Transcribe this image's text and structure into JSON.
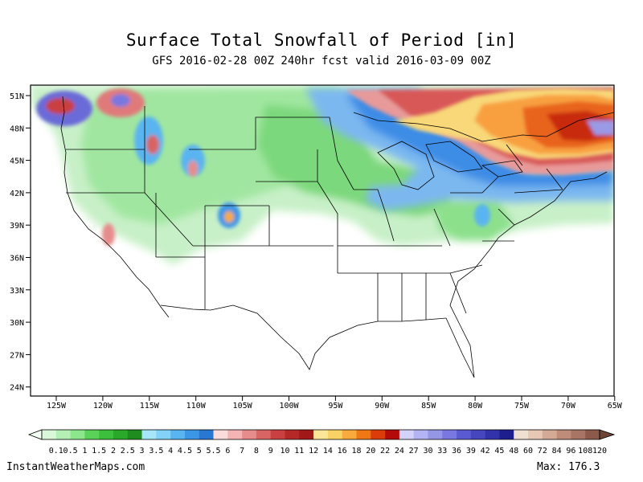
{
  "header": {
    "title": "Surface Total Snowfall of Period [in]",
    "subtitle": "GFS 2016-02-28 00Z 240hr fcst valid 2016-03-09 00Z"
  },
  "map": {
    "lat_labels": [
      "51N",
      "48N",
      "45N",
      "42N",
      "39N",
      "36N",
      "33N",
      "30N",
      "27N",
      "24N"
    ],
    "lon_labels": [
      "125W",
      "120W",
      "115W",
      "110W",
      "105W",
      "100W",
      "95W",
      "90W",
      "85W",
      "80W",
      "75W",
      "70W",
      "65W"
    ]
  },
  "legend": {
    "labels": [
      "0.1",
      "0.5",
      "1",
      "1.5",
      "2",
      "2.5",
      "3",
      "3.5",
      "4",
      "4.5",
      "5",
      "5.5",
      "6",
      "7",
      "8",
      "9",
      "10",
      "11",
      "12",
      "14",
      "16",
      "18",
      "20",
      "22",
      "24",
      "27",
      "30",
      "33",
      "36",
      "39",
      "42",
      "45",
      "48",
      "60",
      "72",
      "84",
      "96",
      "108",
      "120"
    ],
    "colors": [
      "#d8f8d8",
      "#b4f0b4",
      "#8ce68c",
      "#5ad25a",
      "#3cc03c",
      "#2aa82a",
      "#1e8c1e",
      "#a6e6fa",
      "#82d2f8",
      "#5ab4f0",
      "#3c96e6",
      "#2878d2",
      "#fadcdc",
      "#f4b4b4",
      "#e68c8c",
      "#d86464",
      "#c84040",
      "#b42828",
      "#a01818",
      "#fae696",
      "#f8d264",
      "#f8aa3c",
      "#f07814",
      "#dc3c0a",
      "#b40a0a",
      "#d2d2fa",
      "#b4b4f4",
      "#9696e6",
      "#7878e0",
      "#5a5ad2",
      "#4646be",
      "#3232aa",
      "#1e1e8c",
      "#f0e0d2",
      "#e6c8b4",
      "#d2aa96",
      "#be8c78",
      "#a87464",
      "#8c5a4a"
    ]
  },
  "footer": {
    "source": "InstantWeatherMaps.com",
    "max": "Max: 176.3"
  }
}
